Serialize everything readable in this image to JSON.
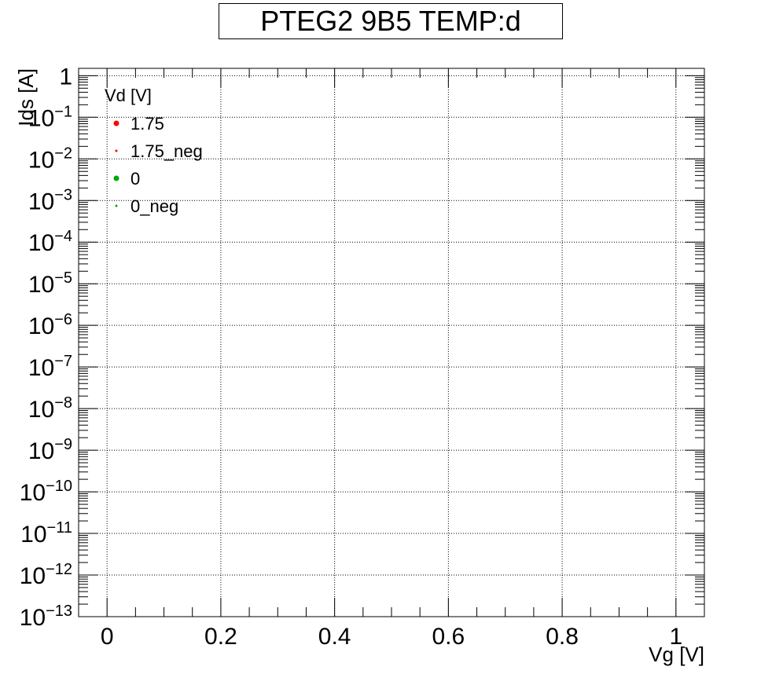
{
  "chart_data": {
    "type": "scatter",
    "title": "PTEG2 9B5 TEMP:d",
    "xlabel": "Vg [V]",
    "ylabel": "Ids [A]",
    "xlim": [
      -0.05,
      1.05
    ],
    "ylim": [
      1e-13,
      1.5
    ],
    "log_y": true,
    "grid": true,
    "x_ticks": [
      {
        "v": 0,
        "label": "0"
      },
      {
        "v": 0.2,
        "label": "0.2"
      },
      {
        "v": 0.4,
        "label": "0.4"
      },
      {
        "v": 0.6,
        "label": "0.6"
      },
      {
        "v": 0.8,
        "label": "0.8"
      },
      {
        "v": 1,
        "label": "1"
      }
    ],
    "y_ticks": [
      {
        "exp": 0,
        "base": "1",
        "sup": ""
      },
      {
        "exp": -1,
        "base": "10",
        "sup": "−1"
      },
      {
        "exp": -2,
        "base": "10",
        "sup": "−2"
      },
      {
        "exp": -3,
        "base": "10",
        "sup": "−3"
      },
      {
        "exp": -4,
        "base": "10",
        "sup": "−4"
      },
      {
        "exp": -5,
        "base": "10",
        "sup": "−5"
      },
      {
        "exp": -6,
        "base": "10",
        "sup": "−6"
      },
      {
        "exp": -7,
        "base": "10",
        "sup": "−7"
      },
      {
        "exp": -8,
        "base": "10",
        "sup": "−8"
      },
      {
        "exp": -9,
        "base": "10",
        "sup": "−9"
      },
      {
        "exp": -10,
        "base": "10",
        "sup": "−10"
      },
      {
        "exp": -11,
        "base": "10",
        "sup": "−11"
      },
      {
        "exp": -12,
        "base": "10",
        "sup": "−12"
      },
      {
        "exp": -13,
        "base": "10",
        "sup": "−13"
      }
    ],
    "legend": {
      "placement": "top-left",
      "title": "Vd [V]",
      "entries": [
        {
          "name": "1.75",
          "color": "#ff0000",
          "marker": "circle"
        },
        {
          "name": "1.75_neg",
          "color": "#ff0000",
          "marker": "dot"
        },
        {
          "name": "0",
          "color": "#00aa00",
          "marker": "circle"
        },
        {
          "name": "0_neg",
          "color": "#00aa00",
          "marker": "dot"
        }
      ]
    },
    "series": []
  }
}
